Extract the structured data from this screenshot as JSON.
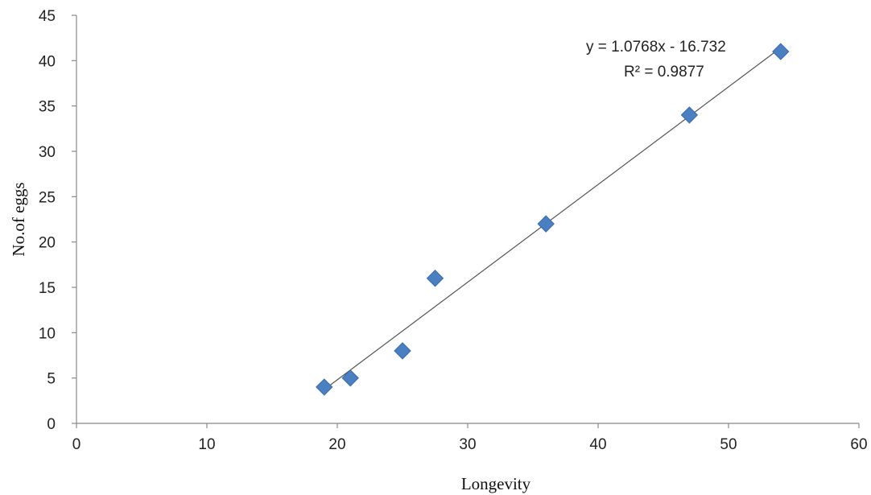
{
  "chart_data": {
    "type": "scatter",
    "title": "",
    "xlabel": "Longevity",
    "ylabel": "No.of eggs",
    "xlim": [
      0,
      60
    ],
    "ylim": [
      0,
      45
    ],
    "x_ticks": [
      0,
      10,
      20,
      30,
      40,
      50,
      60
    ],
    "y_ticks": [
      0,
      5,
      10,
      15,
      20,
      25,
      30,
      35,
      40,
      45
    ],
    "grid": false,
    "legend": "none",
    "series": [
      {
        "x": [
          19,
          21,
          25,
          27.5,
          36,
          47,
          54
        ],
        "y": [
          4,
          5,
          8,
          16,
          22,
          34,
          41
        ],
        "color": "#4a7fc1",
        "marker": "diamond"
      }
    ],
    "trendline": {
      "type": "linear",
      "slope": 1.0768,
      "intercept": -16.732,
      "x_range": [
        19,
        54
      ],
      "color": "#555555",
      "equation_label": "y = 1.0768x - 16.732",
      "r2_label": "R² = 0.9877"
    }
  }
}
